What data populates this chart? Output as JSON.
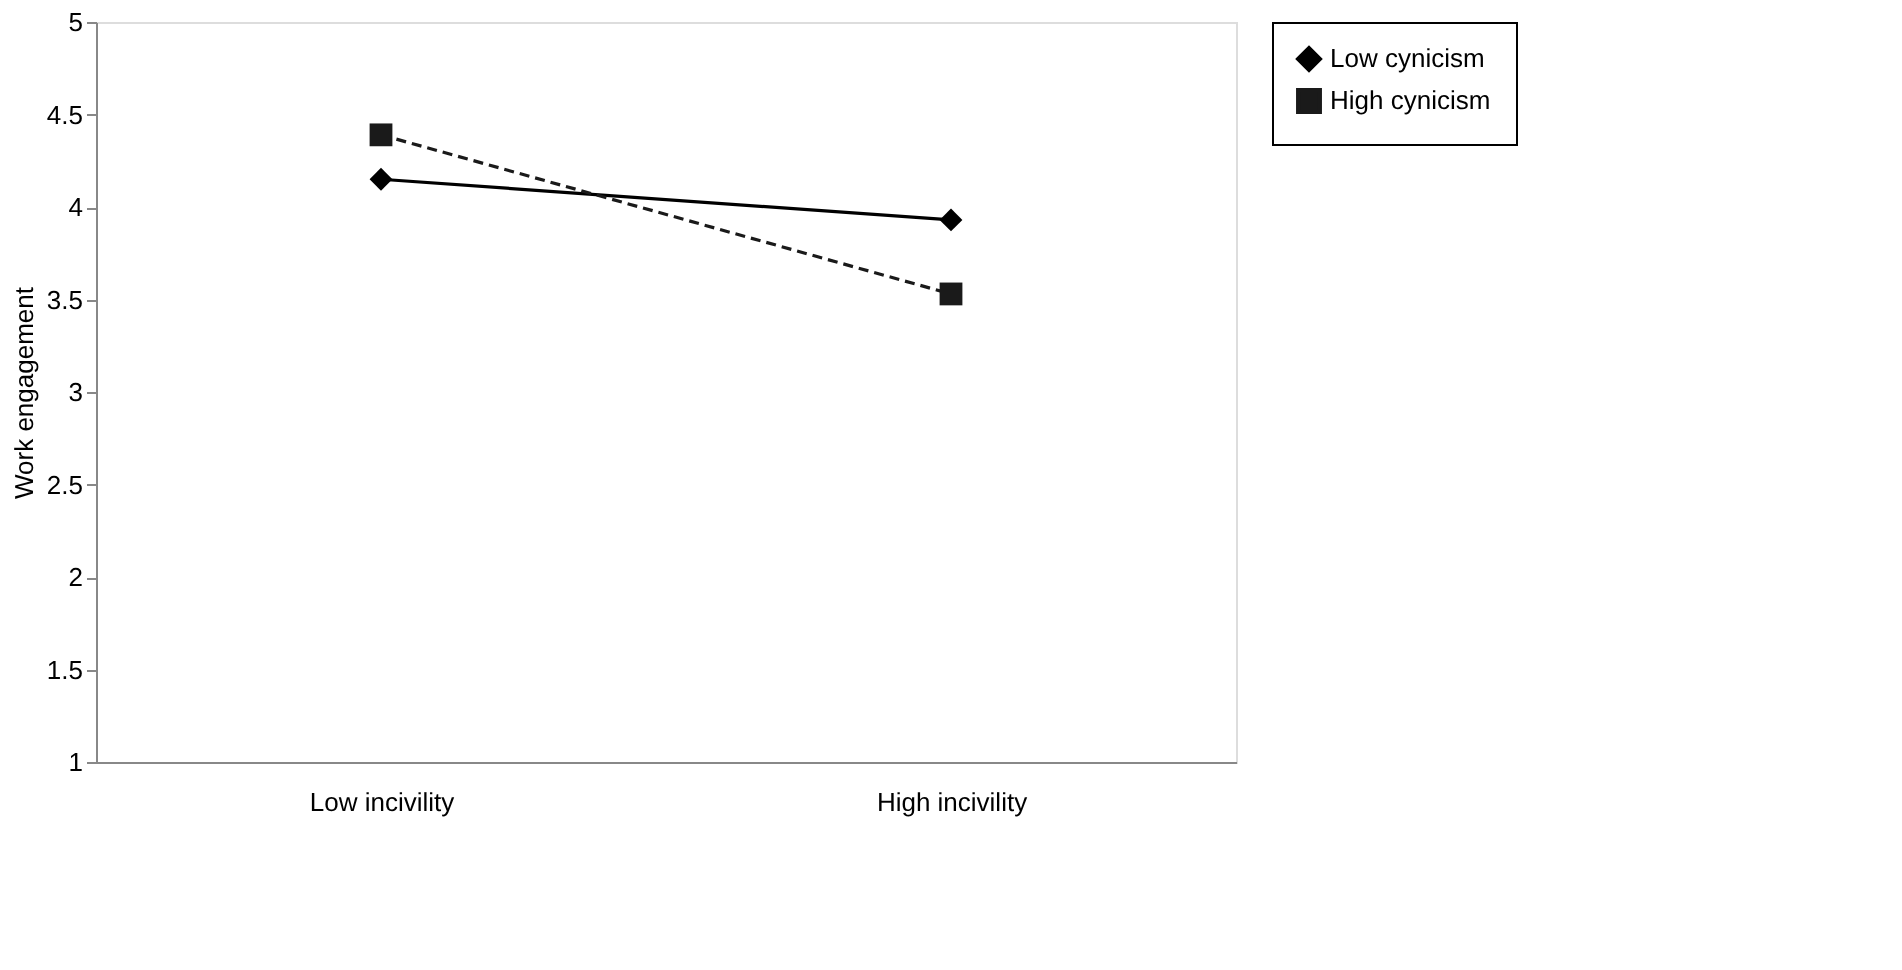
{
  "chart_data": {
    "type": "line",
    "ylabel": "Work engagement",
    "categories": [
      "Low incivility",
      "High incivility"
    ],
    "series": [
      {
        "name": "Low cynicism",
        "color": "#000000",
        "values": [
          4.15,
          3.93
        ],
        "marker": "diamond",
        "line_style": "solid"
      },
      {
        "name": "High cynicism",
        "color": "#1a1a1a",
        "values": [
          4.39,
          3.53
        ],
        "marker": "square",
        "line_style": "dashed"
      }
    ],
    "ylim": [
      1,
      5
    ],
    "yticks": [
      1,
      1.5,
      2,
      2.5,
      3,
      3.5,
      4,
      4.5,
      5
    ],
    "grid": false,
    "legend": "right"
  }
}
